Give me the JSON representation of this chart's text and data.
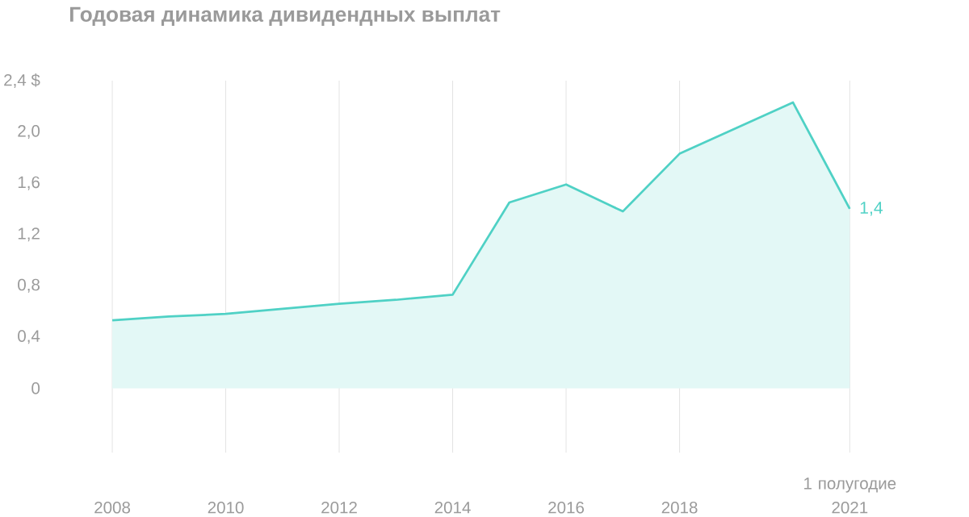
{
  "chart_data": {
    "type": "area",
    "title": "Годовая динамика дивидендных выплат",
    "categories": [
      "2008",
      null,
      "2010",
      null,
      "2012",
      null,
      "2014",
      null,
      "2016",
      null,
      "2018",
      null,
      null,
      "1 полугодие 2021"
    ],
    "values": [
      0.53,
      0.56,
      0.58,
      0.62,
      0.66,
      0.69,
      0.73,
      1.45,
      1.59,
      1.38,
      1.83,
      2.03,
      2.23,
      1.4
    ],
    "value_labels": [
      null,
      null,
      null,
      null,
      null,
      null,
      null,
      null,
      null,
      null,
      null,
      null,
      null,
      "1,4"
    ],
    "color": "#4fd1c5",
    "ylim": [
      0,
      2.4
    ],
    "yticks": [
      {
        "value": 0,
        "label": "0"
      },
      {
        "value": 0.4,
        "label": "0,4"
      },
      {
        "value": 0.8,
        "label": "0,8"
      },
      {
        "value": 1.2,
        "label": "1,2"
      },
      {
        "value": 1.6,
        "label": "1,6"
      },
      {
        "value": 2.0,
        "label": "2,0"
      },
      {
        "value": 2.4,
        "label": "2,4 $"
      }
    ],
    "grid": "x"
  }
}
